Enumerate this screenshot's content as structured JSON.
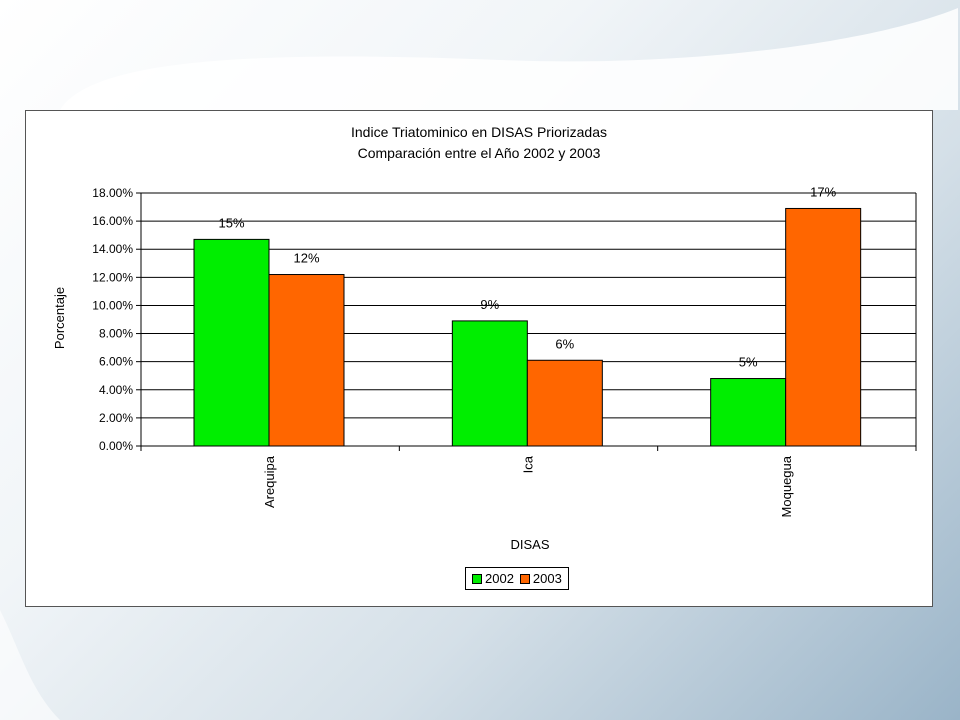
{
  "chart_data": {
    "type": "bar",
    "title": [
      "Indice Triatominico en DISAS Priorizadas",
      "Comparación entre el Año 2002 y 2003"
    ],
    "xlabel": "DISAS",
    "ylabel": "Porcentaje",
    "categories": [
      "Arequipa",
      "Ica",
      "Moquegua"
    ],
    "series": [
      {
        "name": "2002",
        "color": "#00ee00",
        "values": [
          14.7,
          8.9,
          4.8
        ],
        "labels": [
          "15%",
          "9%",
          "5%"
        ]
      },
      {
        "name": "2003",
        "color": "#ff6600",
        "values": [
          12.2,
          6.1,
          16.9
        ],
        "labels": [
          "12%",
          "6%",
          "17%"
        ]
      }
    ],
    "ylim": [
      0,
      18
    ],
    "yticks": [
      0,
      2,
      4,
      6,
      8,
      10,
      12,
      14,
      16,
      18
    ],
    "ytick_labels": [
      "0.00%",
      "2.00%",
      "4.00%",
      "6.00%",
      "8.00%",
      "10.00%",
      "12.00%",
      "14.00%",
      "16.00%",
      "18.00%"
    ],
    "grid": true,
    "legend_position": "bottom"
  }
}
